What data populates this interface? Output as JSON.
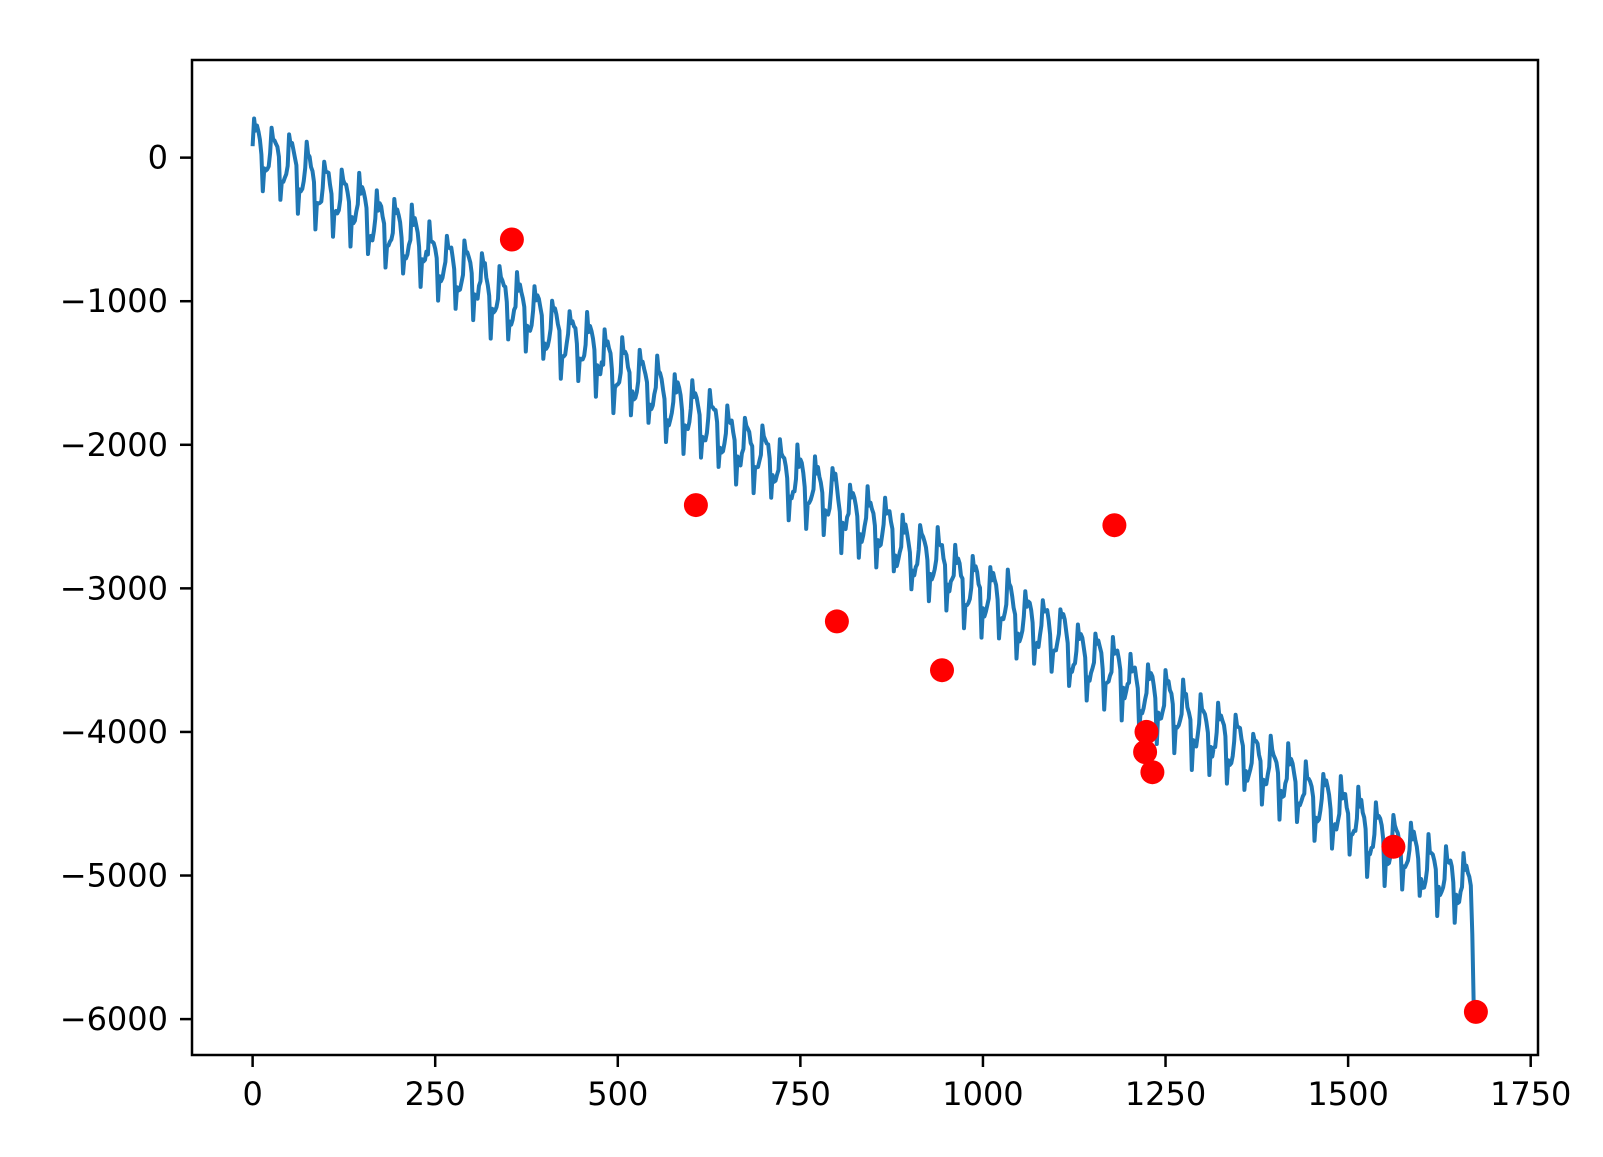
{
  "chart_data": {
    "type": "line",
    "title": "",
    "xlabel": "",
    "ylabel": "",
    "xlim": [
      -83,
      1760
    ],
    "ylim": [
      -6250,
      680
    ],
    "grid": false,
    "legend": "none",
    "x_ticks": [
      0,
      250,
      500,
      750,
      1000,
      1250,
      1500,
      1750
    ],
    "x_tick_labels": [
      "0",
      "250",
      "500",
      "750",
      "1000",
      "1250",
      "1500",
      "1750"
    ],
    "y_ticks": [
      0,
      -1000,
      -2000,
      -3000,
      -4000,
      -5000,
      -6000
    ],
    "y_tick_labels": [
      "0",
      "−1000",
      "−2000",
      "−3000",
      "−4000",
      "−5000",
      "−6000"
    ],
    "series": [
      {
        "kind": "line",
        "color": "#1f77b4",
        "x_start": 0,
        "x_end": 1680,
        "x_step": 2,
        "trend_start": 100,
        "trend_end": -5150,
        "oscillation_period": 24,
        "oscillation_amplitude": 250,
        "staircase_step": 250,
        "staircase_levels": 21
      },
      {
        "kind": "markers",
        "color": "#ff0000",
        "points": [
          {
            "x": 355,
            "y": -570
          },
          {
            "x": 607,
            "y": -2420
          },
          {
            "x": 800,
            "y": -3230
          },
          {
            "x": 944,
            "y": -3570
          },
          {
            "x": 1180,
            "y": -2560
          },
          {
            "x": 1224,
            "y": -4000
          },
          {
            "x": 1222,
            "y": -4140
          },
          {
            "x": 1232,
            "y": -4280
          },
          {
            "x": 1562,
            "y": -4800
          },
          {
            "x": 1675,
            "y": -5950
          }
        ]
      }
    ]
  }
}
